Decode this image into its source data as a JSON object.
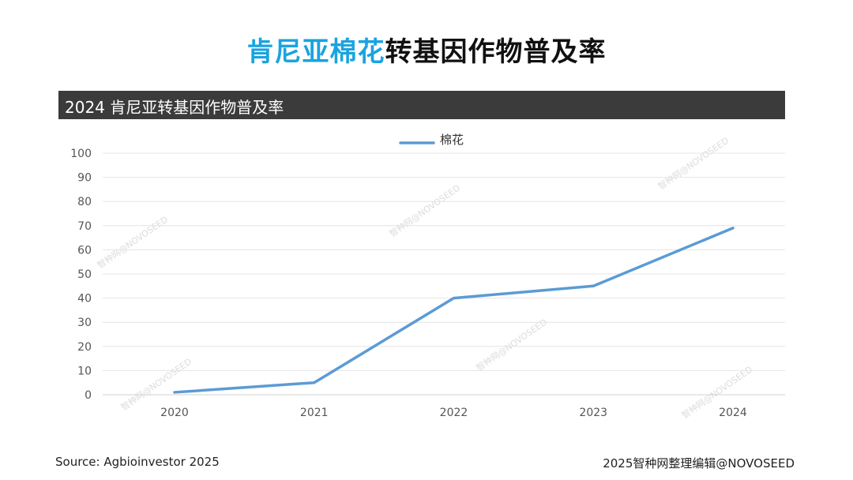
{
  "title": {
    "highlight": "肯尼亚棉花",
    "rest": "转基因作物普及率"
  },
  "band_title": "2024 肯尼亚转基因作物普及率",
  "chart_data": {
    "type": "line",
    "categories": [
      "2020",
      "2021",
      "2022",
      "2023",
      "2024"
    ],
    "series": [
      {
        "name": "棉花",
        "values": [
          1,
          5,
          40,
          45,
          69
        ],
        "color": "#5b9bd5"
      }
    ],
    "ylim": [
      0,
      100
    ],
    "yticks": [
      0,
      10,
      20,
      30,
      40,
      50,
      60,
      70,
      80,
      90,
      100
    ],
    "grid": true,
    "legend": "top-center"
  },
  "watermark": "智种网@NOVOSEED",
  "footer": {
    "source": "Source: Agbioinvestor 2025",
    "credit": "2025智种网整理编辑@NOVOSEED"
  },
  "colors": {
    "title_highlight": "#1aa3e0",
    "band": "#3b3b3b",
    "line": "#5b9bd5"
  }
}
